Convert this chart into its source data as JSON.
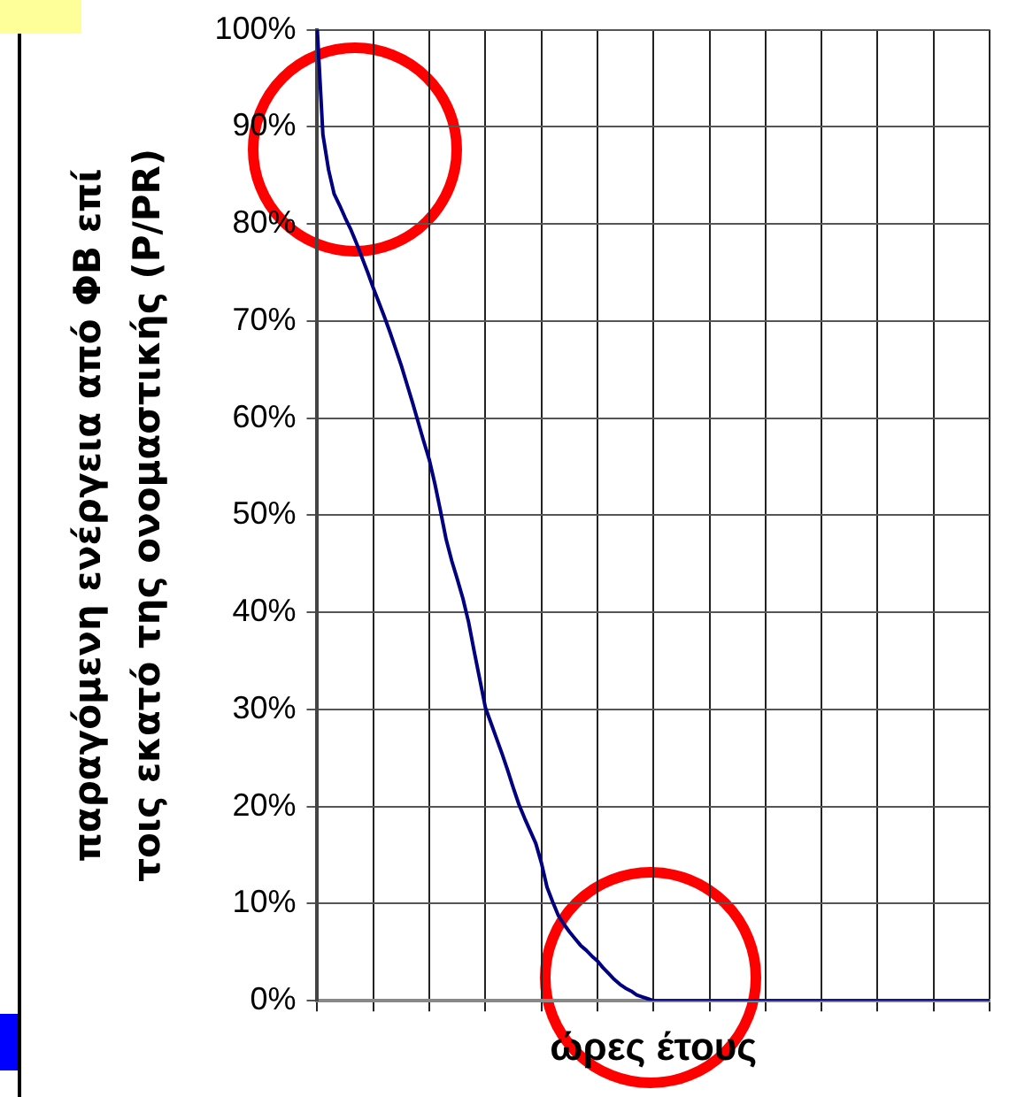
{
  "chart_data": {
    "type": "line",
    "xlabel": "ώρες έτους",
    "ylabel": "παραγόμενη ενέργεια από ΦΒ επί\nτοις εκατό της ονομαστικής (P/PR)",
    "categories": [
      null,
      null,
      null,
      null,
      null,
      null,
      null,
      null,
      null,
      null,
      null,
      null,
      null,
      null,
      null,
      null,
      null,
      null,
      null,
      null,
      null,
      null,
      null,
      null,
      null,
      null,
      null,
      null,
      null,
      null,
      null,
      null,
      null,
      null,
      null,
      null,
      null,
      null,
      null,
      null,
      null,
      null,
      null,
      null,
      null,
      null,
      null,
      null,
      null,
      null,
      null,
      null,
      null,
      null,
      null,
      null,
      null,
      null,
      null,
      null,
      null,
      null,
      null,
      null,
      null,
      null,
      null,
      null,
      null,
      null,
      null,
      null,
      null,
      null,
      null,
      null,
      null,
      null,
      null,
      null,
      null,
      null,
      null,
      null,
      null,
      null,
      null,
      null,
      null,
      null,
      null,
      null,
      null,
      null,
      null,
      null,
      null,
      null,
      null,
      null,
      null,
      null,
      null,
      null,
      null,
      null,
      null,
      null,
      null,
      null,
      null,
      null,
      null,
      null,
      null,
      null,
      null,
      null,
      null,
      null,
      null
    ],
    "series": [
      {
        "color": "#000080",
        "values": [
          100,
          89.2,
          85.6,
          83.1,
          81.9,
          80.6,
          79.4,
          78.0,
          76.5,
          75.0,
          73.4,
          71.9,
          70.4,
          68.8,
          67.1,
          65.4,
          63.5,
          61.6,
          59.6,
          57.6,
          55.7,
          53.2,
          50.4,
          47.5,
          45.3,
          43.4,
          41.4,
          39.0,
          36.0,
          33.1,
          30.2,
          28.6,
          27.0,
          25.4,
          23.7,
          21.9,
          20.2,
          18.8,
          17.5,
          16.2,
          14.2,
          11.7,
          10.2,
          8.8,
          7.9,
          7.1,
          6.4,
          5.7,
          5.2,
          4.6,
          4.1,
          3.4,
          2.8,
          2.2,
          1.7,
          1.3,
          1.0,
          0.6,
          0.4,
          0.2,
          0,
          0,
          0,
          0,
          0,
          0,
          0,
          0,
          0,
          0,
          0,
          0,
          0,
          0,
          0,
          0,
          0,
          0,
          0,
          0,
          0,
          0,
          0,
          0,
          0,
          0,
          0,
          0,
          0,
          0,
          0,
          0,
          0,
          0,
          0,
          0,
          0,
          0,
          0,
          0,
          0,
          0,
          0,
          0,
          0,
          0,
          0,
          0,
          0,
          0,
          0,
          0,
          0,
          0,
          0,
          0,
          0,
          0,
          0,
          0,
          0
        ]
      }
    ],
    "ylim": [
      0,
      100
    ],
    "yticks": [
      {
        "value": 0,
        "label": "0%"
      },
      {
        "value": 10,
        "label": "10%"
      },
      {
        "value": 20,
        "label": "20%"
      },
      {
        "value": 30,
        "label": "30%"
      },
      {
        "value": 40,
        "label": "40%"
      },
      {
        "value": 50,
        "label": "50%"
      },
      {
        "value": 60,
        "label": "60%"
      },
      {
        "value": 70,
        "label": "70%"
      },
      {
        "value": 80,
        "label": "80%"
      },
      {
        "value": 90,
        "label": "90%"
      },
      {
        "value": 100,
        "label": "100%"
      }
    ],
    "tick_labels": "y",
    "grid": true,
    "legend": false,
    "marker": "none",
    "line_style": "solid"
  }
}
